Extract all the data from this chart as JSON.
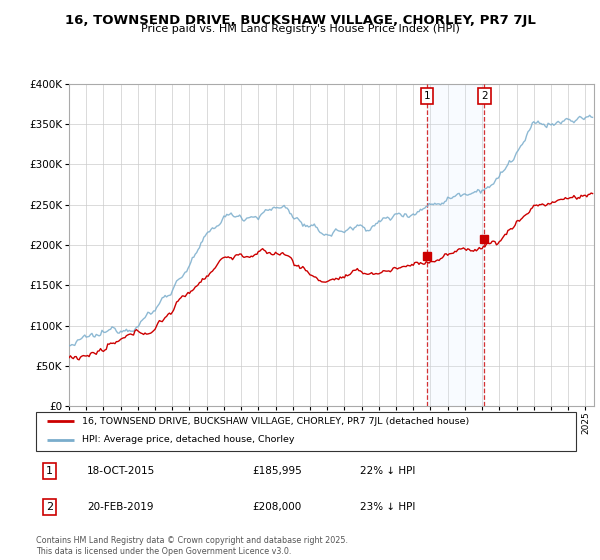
{
  "title": "16, TOWNSEND DRIVE, BUCKSHAW VILLAGE, CHORLEY, PR7 7JL",
  "subtitle": "Price paid vs. HM Land Registry's House Price Index (HPI)",
  "red_label": "16, TOWNSEND DRIVE, BUCKSHAW VILLAGE, CHORLEY, PR7 7JL (detached house)",
  "blue_label": "HPI: Average price, detached house, Chorley",
  "sale1_date": "18-OCT-2015",
  "sale1_price": 185995,
  "sale1_pct": "22% ↓ HPI",
  "sale1_x": 2015.8,
  "sale2_date": "20-FEB-2019",
  "sale2_price": 208000,
  "sale2_pct": "23% ↓ HPI",
  "sale2_x": 2019.13,
  "footer": "Contains HM Land Registry data © Crown copyright and database right 2025.\nThis data is licensed under the Open Government Licence v3.0.",
  "red_color": "#cc0000",
  "blue_color": "#7aadcc",
  "shade_color": "#ddeeff",
  "ylim": [
    0,
    400000
  ],
  "xlim": [
    1995.0,
    2025.5
  ]
}
